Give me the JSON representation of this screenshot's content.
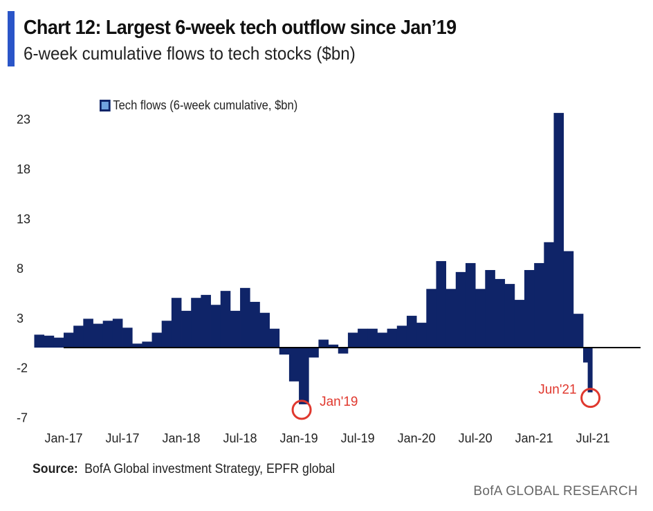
{
  "header": {
    "title": "Chart 12: Largest 6-week tech outflow since Jan’19",
    "subtitle": "6-week cumulative flows to tech stocks ($bn)",
    "accent_color": "#2a55c8"
  },
  "footer": {
    "source_label": "Source:",
    "source_text": "BofA Global investment Strategy, EPFR global",
    "brand": "BofA GLOBAL RESEARCH"
  },
  "chart_data": {
    "type": "bar",
    "legend": {
      "label": "Tech flows (6-week cumulative, $bn)",
      "placement": "top-left"
    },
    "series_color": "#0f2468",
    "annotation_color": "#e0382e",
    "ylim": [
      -7,
      25
    ],
    "yticks": [
      23,
      18,
      13,
      8,
      3,
      -2,
      -7
    ],
    "xticks": [
      {
        "date": "2017-01",
        "label": "Jan-17"
      },
      {
        "date": "2017-07",
        "label": "Jul-17"
      },
      {
        "date": "2018-01",
        "label": "Jan-18"
      },
      {
        "date": "2018-07",
        "label": "Jul-18"
      },
      {
        "date": "2019-01",
        "label": "Jan-19"
      },
      {
        "date": "2019-07",
        "label": "Jul-19"
      },
      {
        "date": "2020-01",
        "label": "Jan-20"
      },
      {
        "date": "2020-07",
        "label": "Jul-20"
      },
      {
        "date": "2021-01",
        "label": "Jan-21"
      },
      {
        "date": "2021-07",
        "label": "Jul-21"
      }
    ],
    "grid": false,
    "x": [
      "2016-10",
      "2016-11",
      "2016-12",
      "2017-01",
      "2017-02",
      "2017-03",
      "2017-04",
      "2017-05",
      "2017-06",
      "2017-07",
      "2017-08",
      "2017-09",
      "2017-10",
      "2017-11",
      "2017-12",
      "2018-01",
      "2018-02",
      "2018-03",
      "2018-04",
      "2018-05",
      "2018-06",
      "2018-07",
      "2018-08",
      "2018-09",
      "2018-10",
      "2018-11",
      "2018-12",
      "2019-01",
      "2019-02",
      "2019-03",
      "2019-04",
      "2019-05",
      "2019-06",
      "2019-07",
      "2019-08",
      "2019-09",
      "2019-10",
      "2019-11",
      "2019-12",
      "2020-01",
      "2020-02",
      "2020-03",
      "2020-04",
      "2020-05",
      "2020-06",
      "2020-07",
      "2020-08",
      "2020-09",
      "2020-10",
      "2020-11",
      "2020-12",
      "2021-01",
      "2021-02",
      "2021-03",
      "2021-04",
      "2021-05",
      "2021-06-01",
      "2021-06-15"
    ],
    "values": [
      1.3,
      1.2,
      1.0,
      1.5,
      2.2,
      2.9,
      2.4,
      2.7,
      2.9,
      2.0,
      0.4,
      0.6,
      1.5,
      2.7,
      5.0,
      3.7,
      5.0,
      5.3,
      4.3,
      5.7,
      3.7,
      6.0,
      4.6,
      3.5,
      1.9,
      -0.7,
      -3.4,
      -5.7,
      -1.0,
      0.8,
      0.3,
      -0.6,
      1.5,
      1.9,
      1.9,
      1.5,
      1.9,
      2.2,
      3.2,
      2.5,
      5.9,
      8.7,
      5.9,
      7.6,
      8.5,
      5.9,
      7.8,
      6.9,
      6.4,
      4.8,
      7.8,
      8.5,
      10.6,
      23.6,
      9.7,
      3.4,
      -1.5,
      -4.5
    ],
    "annotations": [
      {
        "label": "Jan'19",
        "date": "2019-01",
        "value": -5.7
      },
      {
        "label": "Jun'21",
        "date": "2021-06-15",
        "value": -4.5
      }
    ]
  }
}
